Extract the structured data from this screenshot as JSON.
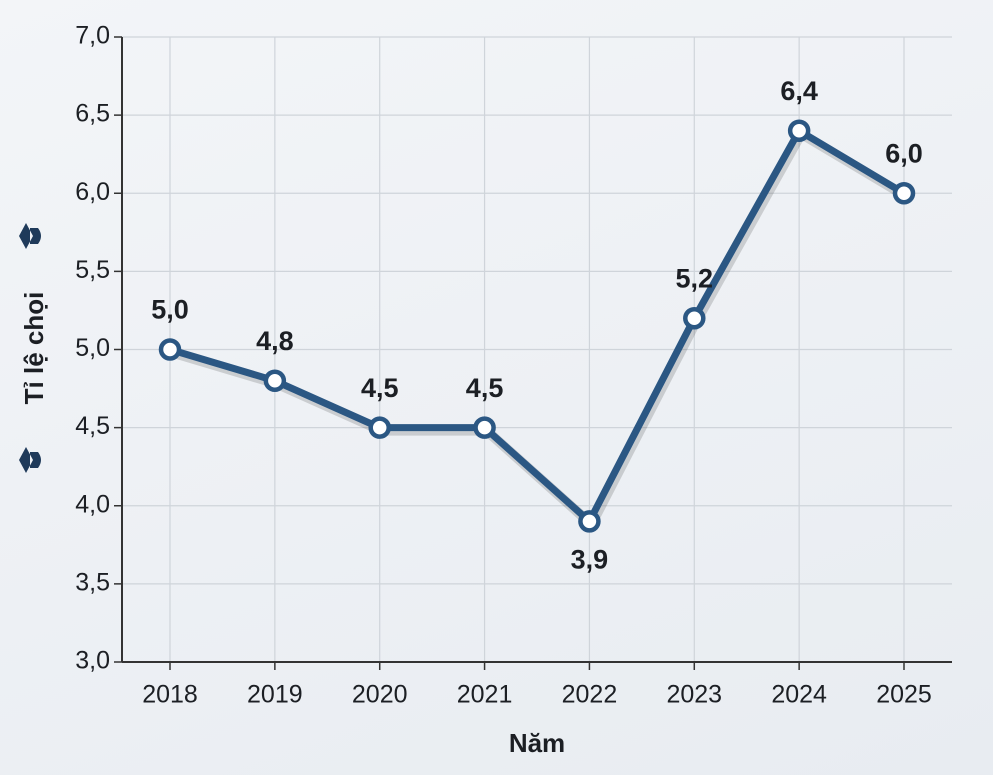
{
  "chart_data": {
    "type": "line",
    "x_label": "Năm",
    "y_label": "Tỉ lệ chọi",
    "categories": [
      "2018",
      "2019",
      "2020",
      "2021",
      "2022",
      "2023",
      "2024",
      "2025"
    ],
    "values": [
      5.0,
      4.8,
      4.5,
      4.5,
      3.9,
      5.2,
      6.4,
      6.0
    ],
    "value_labels": [
      "5,0",
      "4,8",
      "4,5",
      "4,5",
      "3,9",
      "5,2",
      "6,4",
      "6,0"
    ],
    "color": "#2b5783",
    "ylim": [
      3.0,
      7.0
    ],
    "yticks": [
      {
        "value": 3.0,
        "label": "3,0"
      },
      {
        "value": 3.5,
        "label": "3,5"
      },
      {
        "value": 4.0,
        "label": "4,0"
      },
      {
        "value": 4.5,
        "label": "4,5"
      },
      {
        "value": 5.0,
        "label": "5,0"
      },
      {
        "value": 5.5,
        "label": "5,5"
      },
      {
        "value": 6.0,
        "label": "6,0"
      },
      {
        "value": 6.5,
        "label": "6,5"
      },
      {
        "value": 7.0,
        "label": "7,0"
      }
    ],
    "grid": true
  }
}
